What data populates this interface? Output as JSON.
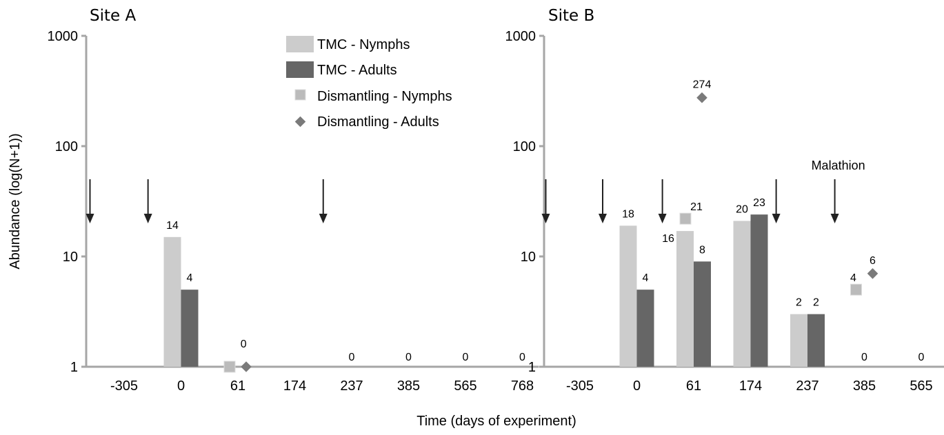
{
  "chart_data": {
    "type": "bar",
    "ylabel": "Abundance (log(N+1))",
    "xlabel": "Time (days of experiment)",
    "yscale": "log",
    "ylim": [
      1,
      1000
    ],
    "yticks": [
      "1",
      "10",
      "100",
      "1000"
    ],
    "categories": [
      "-305",
      "0",
      "61",
      "174",
      "237",
      "385",
      "565",
      "768"
    ],
    "colors": {
      "tmc_nymphs": "#cccccc",
      "tmc_adults": "#666666",
      "dis_nymphs": "#bbbbbb",
      "dis_adults": "#7a7a7a",
      "axis": "#a6a6a6"
    },
    "legend": {
      "tmc_nymphs": "TMC - Nymphs",
      "tmc_adults": "TMC - Adults",
      "dis_nymphs": "Dismantling - Nymphs",
      "dis_adults": "Dismantling - Adults"
    },
    "panels": [
      {
        "title": "Site A",
        "bars": [
          {
            "category": "0",
            "series": "tmc_nymphs",
            "value": 14,
            "label": "14"
          },
          {
            "category": "0",
            "series": "tmc_adults",
            "value": 4,
            "label": "4"
          }
        ],
        "points": [
          {
            "category": "61",
            "series": "dis_nymphs",
            "value": 0
          },
          {
            "category": "61",
            "series": "dis_adults",
            "value": 0
          }
        ],
        "zero_labels": [
          {
            "category": "61",
            "offset": 0.1,
            "label": "0"
          },
          {
            "category": "237",
            "offset": 0,
            "label": "0"
          },
          {
            "category": "385",
            "offset": 0,
            "label": "0"
          },
          {
            "category": "565",
            "offset": 0,
            "label": "0"
          },
          {
            "category": "768",
            "offset": 0,
            "label": "0"
          }
        ],
        "arrows": [
          -0.6,
          0.42,
          3.5
        ],
        "annotations": []
      },
      {
        "title": "Site B",
        "bars": [
          {
            "category": "0",
            "series": "tmc_nymphs",
            "value": 18,
            "label": "18"
          },
          {
            "category": "0",
            "series": "tmc_adults",
            "value": 4,
            "label": "4"
          },
          {
            "category": "61",
            "series": "tmc_nymphs",
            "value": 16,
            "label": "16"
          },
          {
            "category": "61",
            "series": "tmc_adults",
            "value": 8,
            "label": "8"
          },
          {
            "category": "174",
            "series": "tmc_nymphs",
            "value": 20,
            "label": "20"
          },
          {
            "category": "174",
            "series": "tmc_adults",
            "value": 23,
            "label": "23"
          },
          {
            "category": "237",
            "series": "tmc_nymphs",
            "value": 2,
            "label": "2"
          },
          {
            "category": "237",
            "series": "tmc_adults",
            "value": 2,
            "label": "2"
          }
        ],
        "points": [
          {
            "category": "61",
            "series": "dis_nymphs",
            "value": 21,
            "label": "21"
          },
          {
            "category": "61",
            "series": "dis_adults",
            "value": 274,
            "label": "274"
          },
          {
            "category": "385",
            "series": "dis_nymphs",
            "value": 4,
            "label": "4"
          },
          {
            "category": "385",
            "series": "dis_adults",
            "value": 6,
            "label": "6"
          }
        ],
        "zero_labels": [
          {
            "category": "385",
            "offset": 0,
            "label": "0"
          },
          {
            "category": "565",
            "offset": 0,
            "label": "0"
          },
          {
            "category": "768",
            "offset": 0,
            "label": "0"
          }
        ],
        "arrows": [
          -0.6,
          0.4,
          1.45,
          3.45,
          4.48
        ],
        "annotations": [
          {
            "text": "Malathion",
            "x_index": 4.48,
            "value": 100
          }
        ]
      }
    ]
  }
}
